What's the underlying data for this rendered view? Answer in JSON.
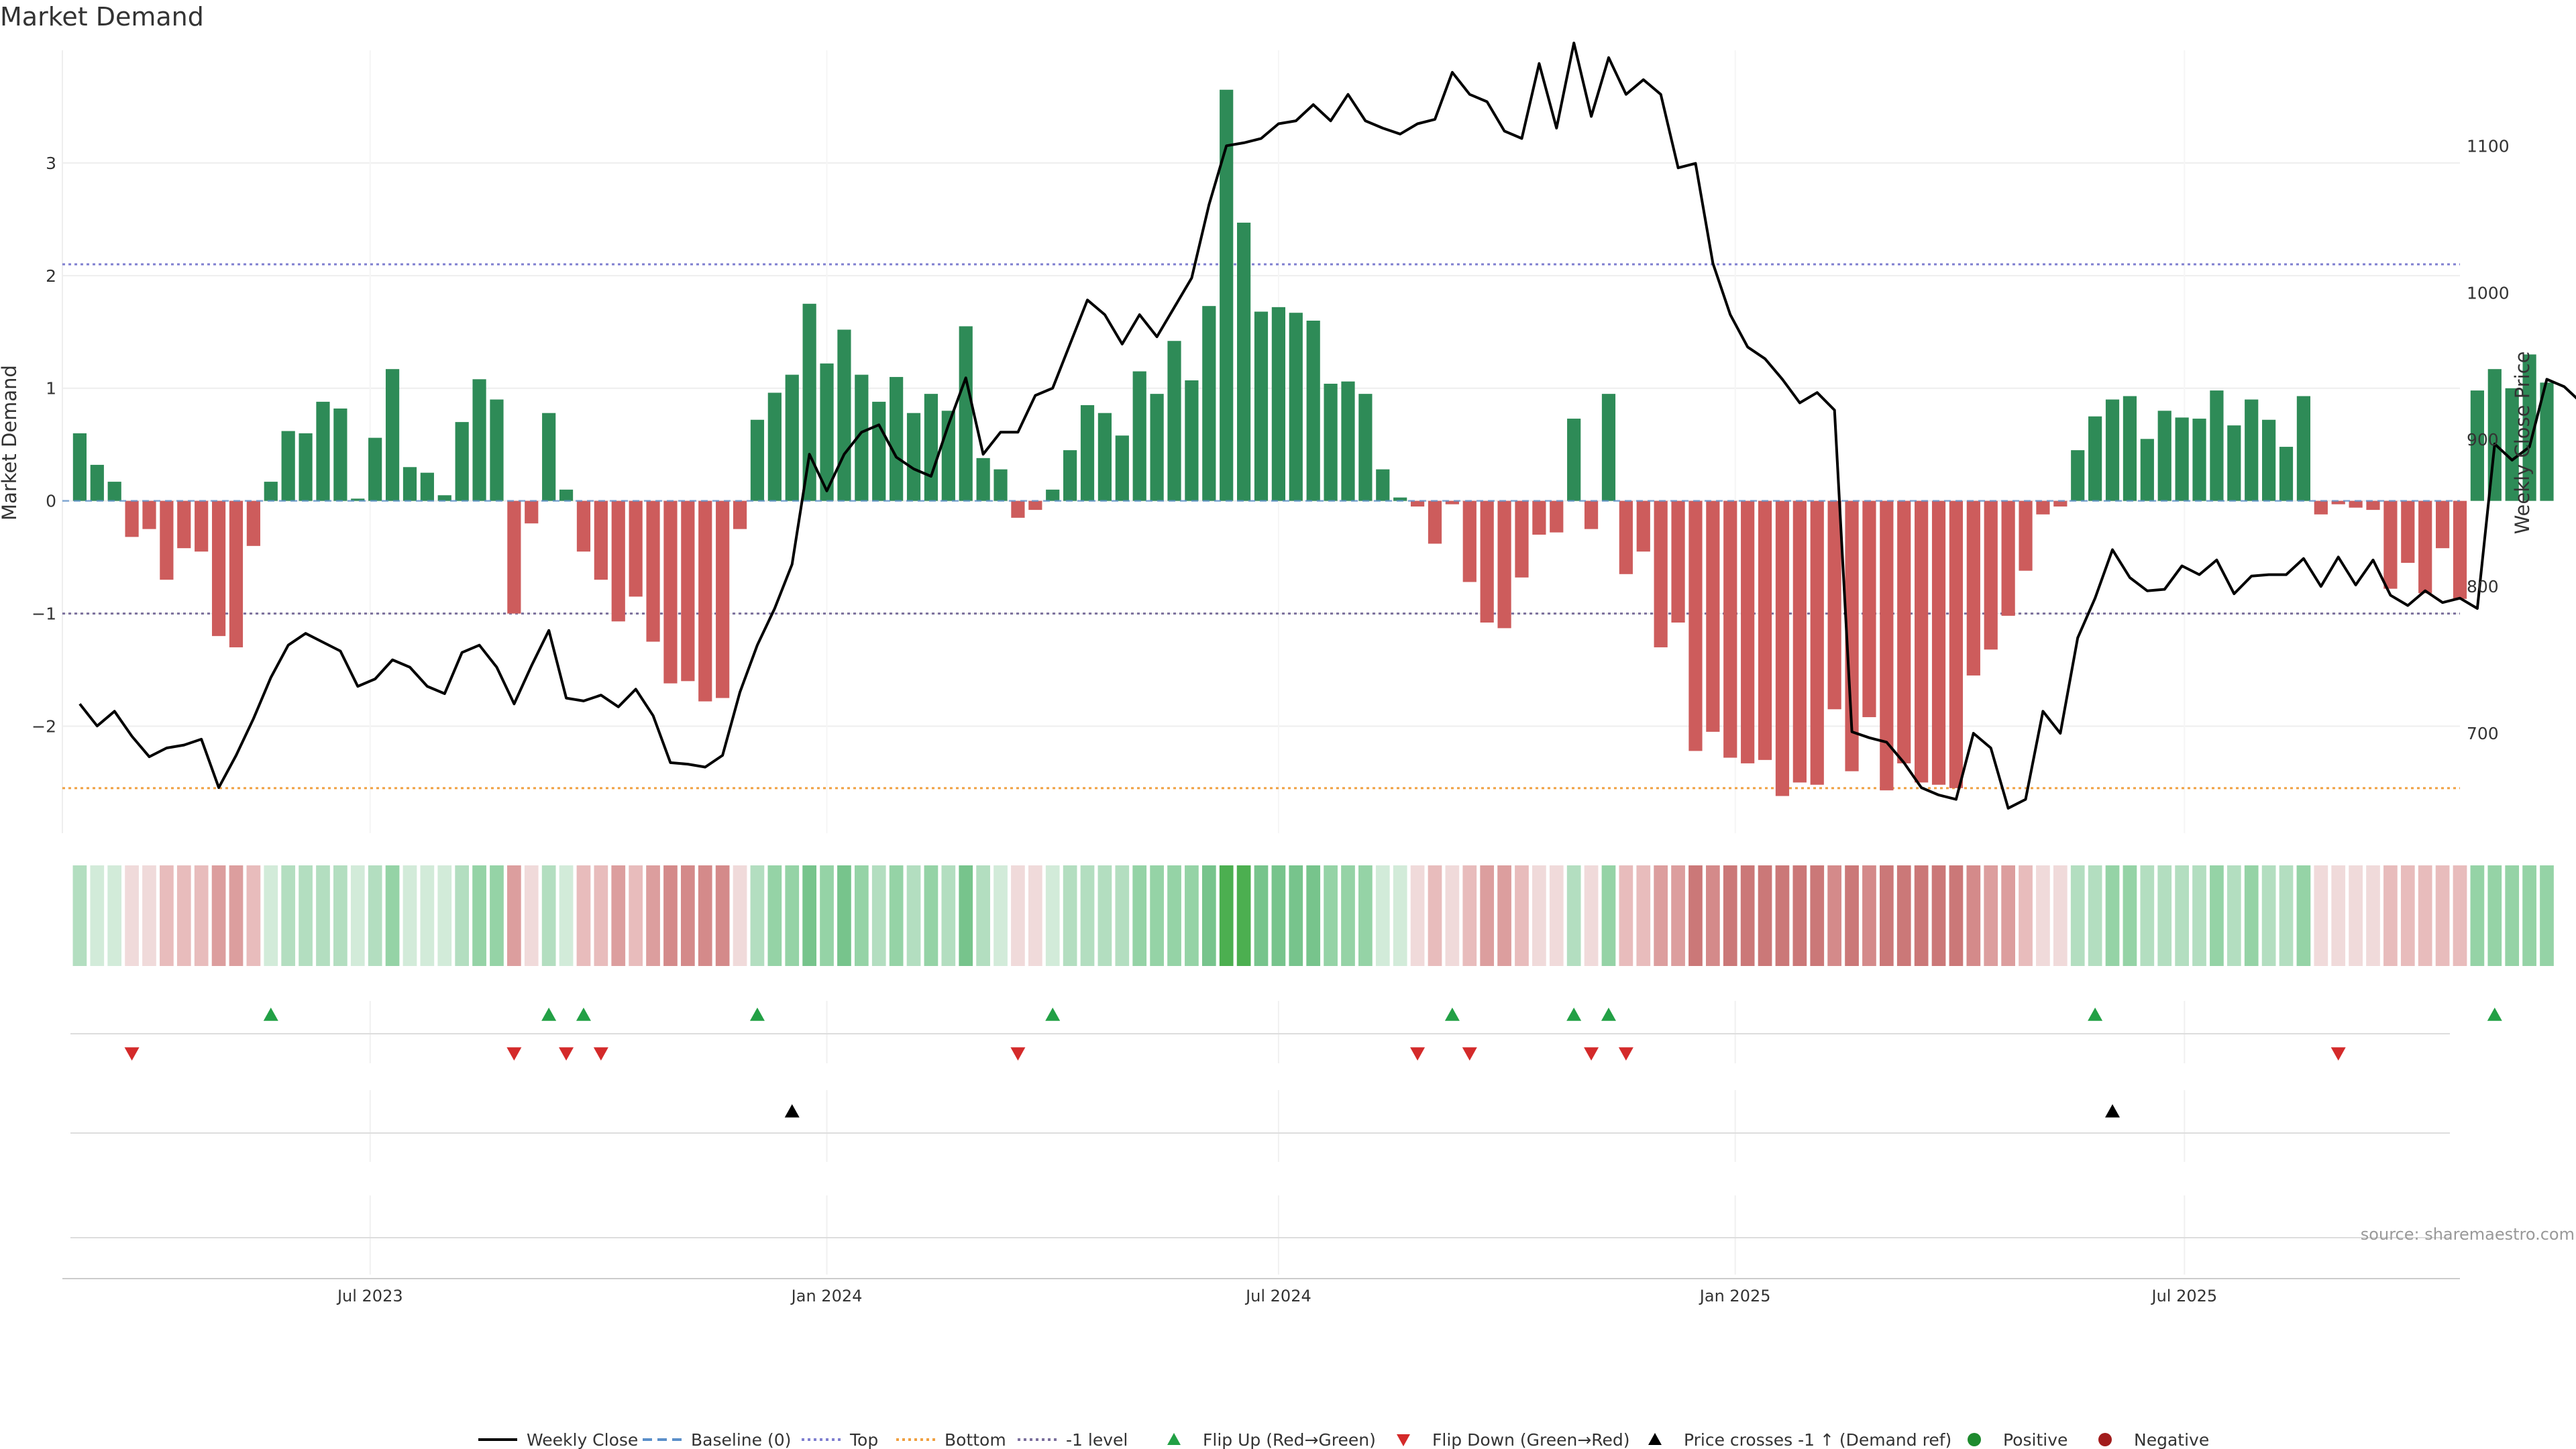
{
  "chart_data": {
    "type": "bar",
    "title": "Market Demand",
    "ylabel": "Market Demand",
    "y2label": "Weekly Close Price",
    "ylim": [
      -2.95,
      4.0
    ],
    "y2lim": [
      632,
      1165
    ],
    "yticks": [
      3,
      2,
      1,
      0,
      -1,
      -2
    ],
    "y2ticks": [
      1100,
      1000,
      900,
      800,
      700
    ],
    "x_start": "2023-02-27",
    "x_end": "2025-10-20",
    "week_start": "2023-03-06",
    "xticks": [
      {
        "date": "2023-07-01",
        "label": "Jul 2023"
      },
      {
        "date": "2024-01-01",
        "label": "Jan 2024"
      },
      {
        "date": "2024-07-01",
        "label": "Jul 2024"
      },
      {
        "date": "2025-01-01",
        "label": "Jan 2025"
      },
      {
        "date": "2025-07-01",
        "label": "Jul 2025"
      }
    ],
    "reference_lines": [
      {
        "name": "Top",
        "value": 2.1,
        "color": "#7f7fd0"
      },
      {
        "name": "Bottom",
        "value": -2.55,
        "color": "#f0a040"
      },
      {
        "name": "-1 level",
        "value": -1.0,
        "color": "#7a6f9c"
      },
      {
        "name": "Baseline (0)",
        "value": 0,
        "color": "#5b8fc9"
      }
    ],
    "series": [
      {
        "name": "Market Demand",
        "type": "bar",
        "positive_color": "#2e8b57",
        "negative_color": "#cd5c5c",
        "values": [
          0.6,
          0.32,
          0.17,
          -0.32,
          -0.25,
          -0.7,
          -0.42,
          -0.45,
          -1.2,
          -1.3,
          -0.4,
          0.17,
          0.62,
          0.6,
          0.88,
          0.82,
          0.02,
          0.56,
          1.17,
          0.3,
          0.25,
          0.05,
          0.7,
          1.08,
          0.9,
          -1.0,
          -0.2,
          0.78,
          0.1,
          -0.45,
          -0.7,
          -1.07,
          -0.85,
          -1.25,
          -1.62,
          -1.6,
          -1.78,
          -1.75,
          -0.25,
          0.72,
          0.96,
          1.12,
          1.75,
          1.22,
          1.52,
          1.12,
          0.88,
          1.1,
          0.78,
          0.95,
          0.8,
          1.55,
          0.38,
          0.28,
          -0.15,
          -0.08,
          0.1,
          0.45,
          0.85,
          0.78,
          0.58,
          1.15,
          0.95,
          1.42,
          1.07,
          1.73,
          3.65,
          2.47,
          1.68,
          1.72,
          1.67,
          1.6,
          1.04,
          1.06,
          0.95,
          0.28,
          0.03,
          -0.05,
          -0.38,
          -0.03,
          -0.72,
          -1.08,
          -1.13,
          -0.68,
          -0.3,
          -0.28,
          0.73,
          -0.25,
          0.95,
          -0.65,
          -0.45,
          -1.3,
          -1.08,
          -2.22,
          -2.05,
          -2.28,
          -2.33,
          -2.3,
          -2.62,
          -2.5,
          -2.52,
          -1.85,
          -2.4,
          -1.92,
          -2.57,
          -2.33,
          -2.5,
          -2.52,
          -2.55,
          -1.55,
          -1.32,
          -1.02,
          -0.62,
          -0.12,
          -0.05,
          0.45,
          0.75,
          0.9,
          0.93,
          0.55,
          0.8,
          0.74,
          0.73,
          0.98,
          0.67,
          0.9,
          0.72,
          0.48,
          0.93,
          -0.12,
          -0.03,
          -0.06,
          -0.08,
          -0.78,
          -0.55,
          -0.82,
          -0.42,
          -0.87,
          0.98,
          1.17,
          1.0,
          1.3,
          1.05
        ]
      },
      {
        "name": "Weekly Close",
        "type": "line",
        "axis": "right",
        "color": "#000000",
        "values": [
          720,
          705,
          715,
          698,
          684,
          690,
          692,
          696,
          663,
          685,
          710,
          738,
          760,
          768,
          762,
          756,
          732,
          737,
          750,
          745,
          732,
          727,
          755,
          760,
          745,
          720,
          746,
          770,
          724,
          722,
          726,
          718,
          730,
          712,
          680,
          679,
          677,
          685,
          728,
          760,
          785,
          815,
          890,
          865,
          890,
          905,
          910,
          888,
          880,
          875,
          910,
          942,
          890,
          905,
          905,
          930,
          935,
          965,
          995,
          985,
          965,
          985,
          970,
          990,
          1010,
          1060,
          1100,
          1102,
          1105,
          1115,
          1117,
          1128,
          1117,
          1135,
          1117,
          1112,
          1108,
          1115,
          1118,
          1150,
          1135,
          1130,
          1110,
          1105,
          1156,
          1112,
          1170,
          1120,
          1160,
          1135,
          1145,
          1135,
          1085,
          1088,
          1020,
          985,
          963,
          955,
          941,
          925,
          932,
          920,
          701,
          697,
          694,
          680,
          663,
          658,
          655,
          700,
          690,
          649,
          655,
          715,
          700,
          765,
          792,
          825,
          806,
          797,
          798,
          814,
          808,
          818,
          795,
          807,
          808,
          808,
          819,
          800,
          820,
          801,
          818,
          794,
          787,
          797,
          789,
          792,
          785,
          897,
          886,
          895,
          941,
          936,
          925
        ]
      }
    ],
    "strip": {
      "green_palette": [
        "#d2ebd9",
        "#b3dec0",
        "#95d3a6",
        "#77c48c",
        "#4caf50"
      ],
      "red_palette": [
        "#f0dada",
        "#e8bcbc",
        "#dc9e9e",
        "#d48a8a",
        "#cb7878"
      ]
    },
    "flip_up_weeks": [
      11,
      27,
      29,
      39,
      56,
      79,
      86,
      88,
      116,
      139
    ],
    "flip_down_weeks": [
      3,
      25,
      28,
      30,
      54,
      77,
      80,
      87,
      89,
      130
    ],
    "price_cross_up_weeks": [
      41,
      117
    ],
    "legend": [
      {
        "label": "Weekly Close",
        "symbol": "line",
        "color": "#000000"
      },
      {
        "label": "Baseline (0)",
        "symbol": "dashed",
        "color": "#5b8fc9"
      },
      {
        "label": "Top",
        "symbol": "dotted",
        "color": "#7f7fd0"
      },
      {
        "label": "Bottom",
        "symbol": "dotted",
        "color": "#f0a040"
      },
      {
        "label": "-1 level",
        "symbol": "dotted",
        "color": "#7a6f9c"
      },
      {
        "label": "Flip Up (Red→Green)",
        "symbol": "triangle-up",
        "color": "#22a045"
      },
      {
        "label": "Flip Down (Green→Red)",
        "symbol": "triangle-down",
        "color": "#d42a2a"
      },
      {
        "label": "Price crosses -1 ↑ (Demand ref)",
        "symbol": "triangle-up",
        "color": "#000000"
      },
      {
        "label": "Positive",
        "symbol": "circle",
        "color": "#1e8a2e"
      },
      {
        "label": "Negative",
        "symbol": "circle",
        "color": "#a21c1c"
      }
    ],
    "source": "source: sharemaestro.com"
  }
}
